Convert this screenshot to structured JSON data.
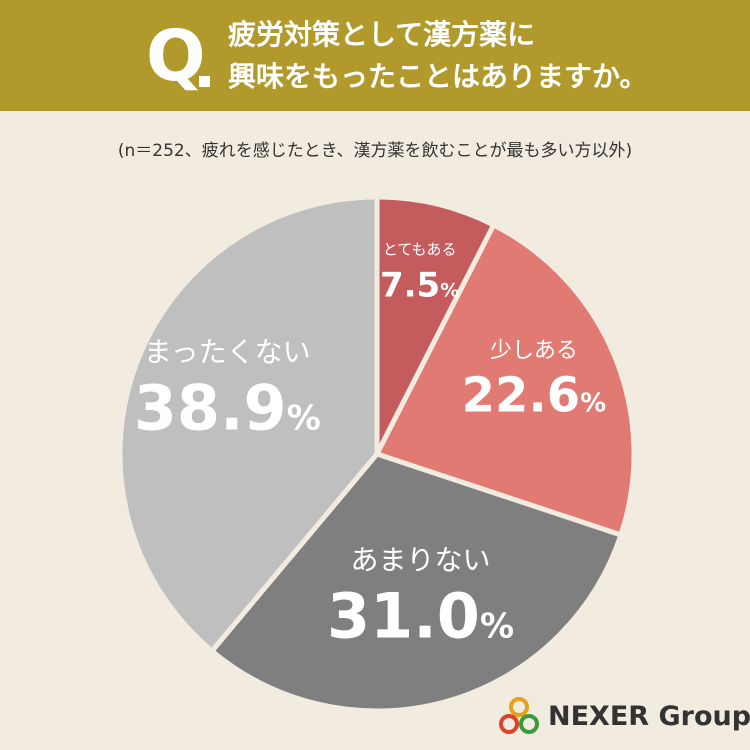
{
  "header": {
    "q_mark": "Q",
    "title_line_1": "疲労対策として漢方薬に",
    "title_line_2": "興味をもったことはありますか。"
  },
  "note": "(n＝252、疲れを感じたとき、漢方薬を飲むことが最も多い方以外)",
  "colors": {
    "header_bg": "#b1992c",
    "page_bg": "#f2ebe0",
    "slice_totemo": "#c45c5e",
    "slice_sukoshi": "#e07a72",
    "slice_amari": "#7f7f7f",
    "slice_mattaku": "#bfbfbf"
  },
  "chart_data": {
    "type": "pie",
    "unit": "%",
    "slices": [
      {
        "label": "とてもある",
        "value": 7.5,
        "color": "#c45c5e"
      },
      {
        "label": "少しある",
        "value": 22.6,
        "color": "#e07a72"
      },
      {
        "label": "あまりない",
        "value": 31.0,
        "color": "#7f7f7f"
      },
      {
        "label": "まったくない",
        "value": 38.9,
        "color": "#bfbfbf"
      }
    ]
  },
  "brand": {
    "name": "NEXER Group",
    "icon": "nexer-rings-logo"
  }
}
